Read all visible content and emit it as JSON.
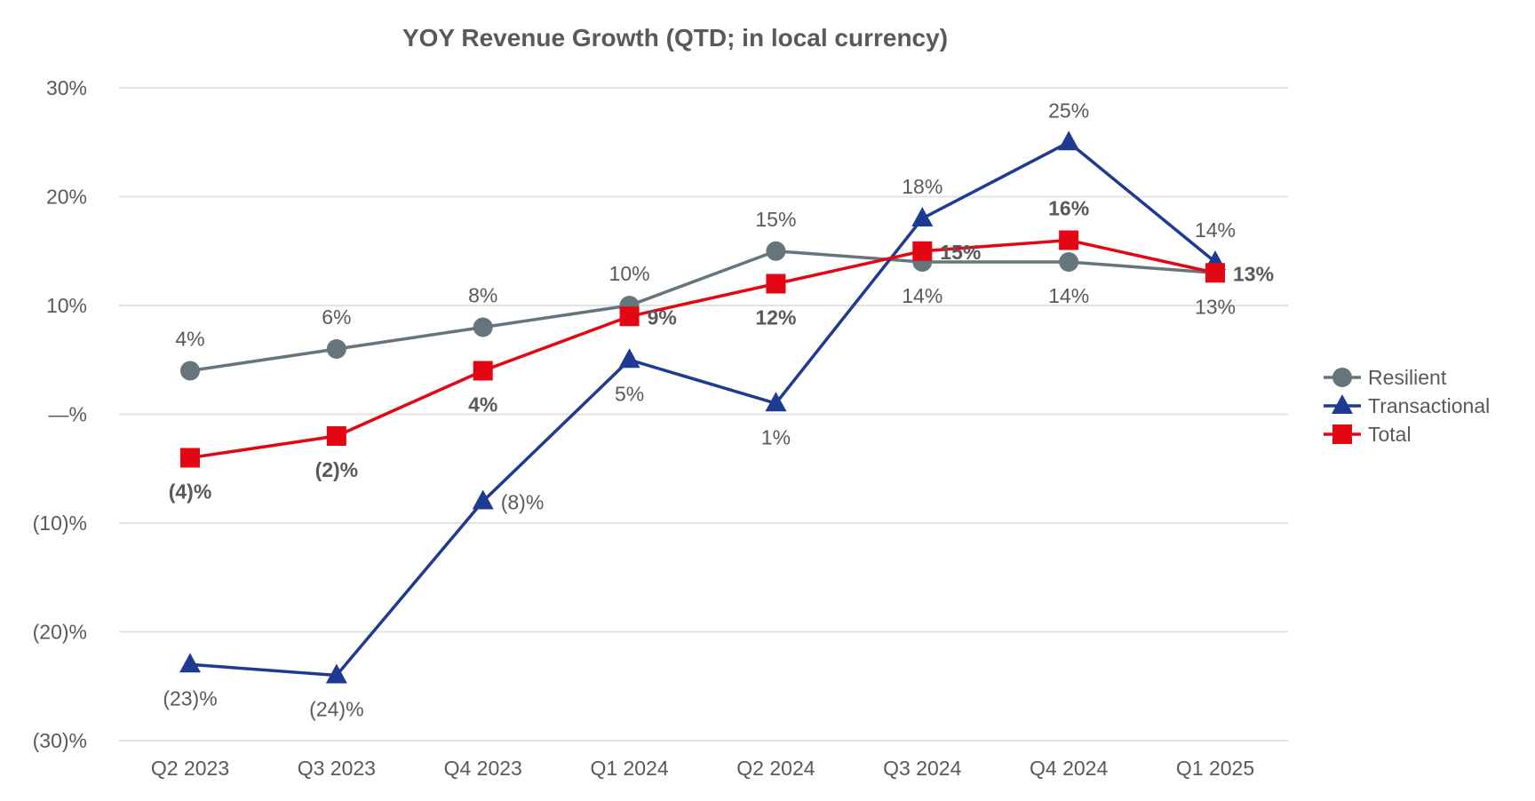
{
  "chart_data": {
    "type": "line",
    "title": "YOY Revenue Growth (QTD; in local currency)",
    "categories": [
      "Q2 2023",
      "Q3 2023",
      "Q4 2023",
      "Q1 2024",
      "Q2 2024",
      "Q3 2024",
      "Q4 2024",
      "Q1 2025"
    ],
    "ylim": [
      -30,
      30
    ],
    "yticks": [
      30,
      20,
      10,
      0,
      -10,
      -20,
      -30
    ],
    "ytick_labels": [
      "30%",
      "20%",
      "10%",
      "—%",
      "(10)%",
      "(20)%",
      "(30)%"
    ],
    "grid": true,
    "legend_placement": "right",
    "series": [
      {
        "name": "Resilient",
        "color": "#66757c",
        "marker": "circle",
        "values": [
          4,
          6,
          8,
          10,
          15,
          14,
          14,
          13
        ],
        "labels": [
          "4%",
          "6%",
          "8%",
          "10%",
          "15%",
          "14%",
          "14%",
          "13%"
        ],
        "bold_labels": false
      },
      {
        "name": "Transactional",
        "color": "#1f3a93",
        "marker": "triangle",
        "values": [
          -23,
          -24,
          -8,
          5,
          1,
          18,
          25,
          14
        ],
        "labels": [
          "(23)%",
          "(24)%",
          "(8)%",
          "5%",
          "1%",
          "18%",
          "25%",
          "14%"
        ],
        "bold_labels": false
      },
      {
        "name": "Total",
        "color": "#e30613",
        "marker": "square",
        "values": [
          -4,
          -2,
          4,
          9,
          12,
          15,
          16,
          13
        ],
        "labels": [
          "(4)%",
          "(2)%",
          "4%",
          "9%",
          "12%",
          "15%",
          "16%",
          "13%"
        ],
        "bold_labels": true
      }
    ]
  }
}
